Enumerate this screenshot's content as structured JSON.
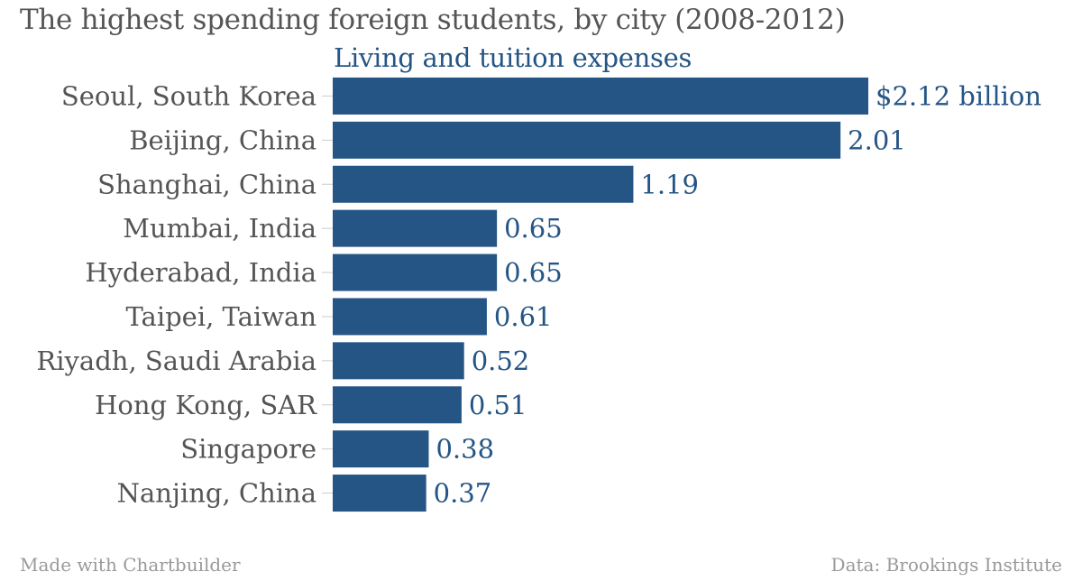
{
  "chart_data": {
    "type": "bar",
    "orientation": "horizontal",
    "title": "The highest spending foreign students, by city (2008-2012)",
    "subtitle": "Living and tuition expenses",
    "categories": [
      "Seoul, South Korea",
      "Beijing, China",
      "Shanghai, China",
      "Mumbai, India",
      "Hyderabad, India",
      "Taipei, Taiwan",
      "Riyadh, Saudi Arabia",
      "Hong Kong, SAR",
      "Singapore",
      "Nanjing, China"
    ],
    "values": [
      2.12,
      2.01,
      1.19,
      0.65,
      0.65,
      0.61,
      0.52,
      0.51,
      0.38,
      0.37
    ],
    "value_labels": [
      "$2.12 billion",
      "2.01",
      "1.19",
      "0.65",
      "0.65",
      "0.61",
      "0.52",
      "0.51",
      "0.38",
      "0.37"
    ],
    "xlim": [
      0,
      2.12
    ],
    "grid": false,
    "legend": "none",
    "bar_color": "#245585"
  },
  "footer": {
    "left": "Made with Chartbuilder",
    "right": "Data: Brookings Institute"
  }
}
